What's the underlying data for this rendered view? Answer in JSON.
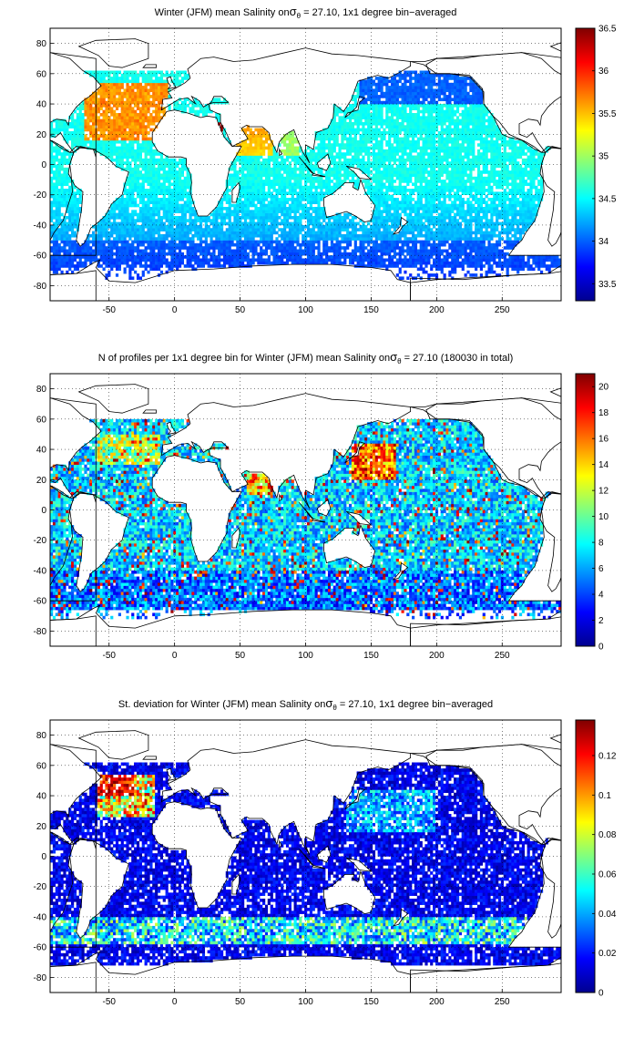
{
  "chart_data": [
    {
      "type": "heatmap",
      "title": "Winter (JFM) mean Salinity on",
      "title_sigma": "σ",
      "title_sub": "θ",
      "title_rest": " = 27.10, 1x1 degree bin−averaged",
      "xlim": [
        -95,
        295
      ],
      "ylim": [
        -90,
        90
      ],
      "xticks": [
        -50,
        0,
        50,
        100,
        150,
        200,
        250
      ],
      "yticks": [
        -80,
        -60,
        -40,
        -20,
        0,
        20,
        40,
        60,
        80
      ],
      "grid": true,
      "colormap": "jet",
      "colorbar": {
        "min": 33.3,
        "max": 36.5,
        "ticks": [
          "33.5",
          "34",
          "34.5",
          "35",
          "35.5",
          "36",
          "36.5"
        ],
        "tick_values": [
          33.5,
          34,
          34.5,
          35,
          35.5,
          36,
          36.5
        ]
      }
    },
    {
      "type": "heatmap",
      "title": "N of profiles per 1x1 degree bin for Winter (JFM) mean Salinity on",
      "title_sigma": "σ",
      "title_sub": "θ",
      "title_rest": " = 27.10 (180030 in total)",
      "xlim": [
        -95,
        295
      ],
      "ylim": [
        -90,
        90
      ],
      "xticks": [
        -50,
        0,
        50,
        100,
        150,
        200,
        250
      ],
      "yticks": [
        -80,
        -60,
        -40,
        -20,
        0,
        20,
        40,
        60,
        80
      ],
      "grid": true,
      "colormap": "jet",
      "colorbar": {
        "min": 0,
        "max": 21,
        "ticks": [
          "0",
          "2",
          "4",
          "6",
          "8",
          "10",
          "12",
          "14",
          "16",
          "18",
          "20"
        ],
        "tick_values": [
          0,
          2,
          4,
          6,
          8,
          10,
          12,
          14,
          16,
          18,
          20
        ]
      }
    },
    {
      "type": "heatmap",
      "title": "St. deviation for Winter (JFM) mean Salinity on",
      "title_sigma": "σ",
      "title_sub": "θ",
      "title_rest": " = 27.10, 1x1 degree bin−averaged",
      "xlim": [
        -95,
        295
      ],
      "ylim": [
        -90,
        90
      ],
      "xticks": [
        -50,
        0,
        50,
        100,
        150,
        200,
        250
      ],
      "yticks": [
        -80,
        -60,
        -40,
        -20,
        0,
        20,
        40,
        60,
        80
      ],
      "grid": true,
      "colormap": "jet",
      "colorbar": {
        "min": 0,
        "max": 0.138,
        "ticks": [
          "0",
          "0.02",
          "0.04",
          "0.06",
          "0.08",
          "0.1",
          "0.12"
        ],
        "tick_values": [
          0,
          0.02,
          0.04,
          0.06,
          0.08,
          0.1,
          0.12
        ]
      }
    }
  ]
}
